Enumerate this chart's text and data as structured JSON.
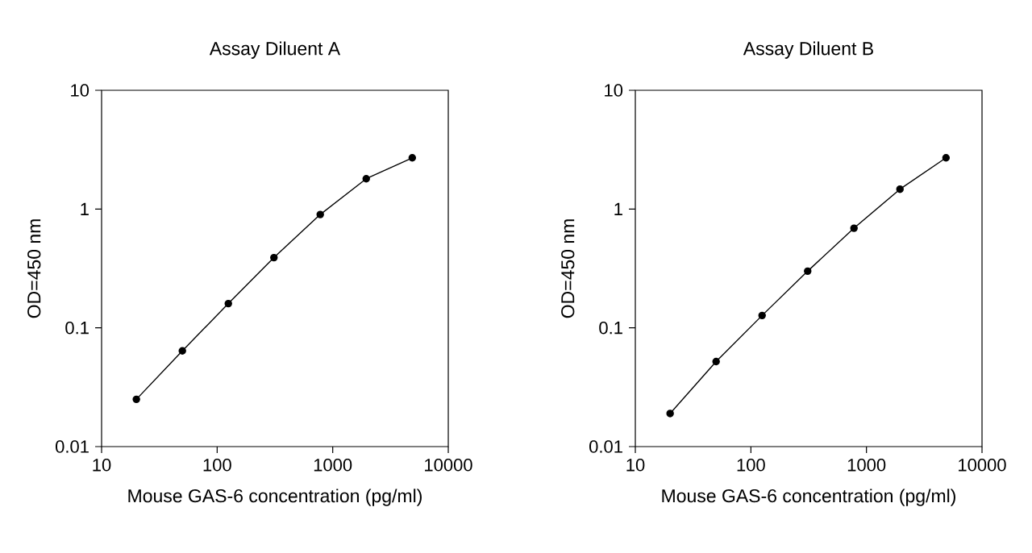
{
  "chart_data": [
    {
      "type": "line",
      "title": "Assay Diluent A",
      "xlabel": "Mouse GAS-6 concentration (pg/ml)",
      "ylabel": "OD=450 nm",
      "log": "xy",
      "xlim": [
        10,
        10000
      ],
      "ylim": [
        0.01,
        10
      ],
      "xticks": [
        10,
        100,
        1000,
        10000
      ],
      "yticks": [
        0.01,
        0.1,
        1,
        10
      ],
      "marker": "circle",
      "grid": false,
      "color": "#000000",
      "x": [
        20,
        50,
        125,
        310,
        780,
        1950,
        4880
      ],
      "values": [
        0.025,
        0.064,
        0.16,
        0.39,
        0.9,
        1.8,
        2.7
      ]
    },
    {
      "type": "line",
      "title": "Assay Diluent B",
      "xlabel": "Mouse GAS-6 concentration (pg/ml)",
      "ylabel": "OD=450 nm",
      "log": "xy",
      "xlim": [
        10,
        10000
      ],
      "ylim": [
        0.01,
        10
      ],
      "xticks": [
        10,
        100,
        1000,
        10000
      ],
      "yticks": [
        0.01,
        0.1,
        1,
        10
      ],
      "marker": "circle",
      "grid": false,
      "color": "#000000",
      "x": [
        20,
        50,
        125,
        310,
        780,
        1950,
        4880
      ],
      "values": [
        0.019,
        0.052,
        0.127,
        0.3,
        0.69,
        1.47,
        2.7
      ]
    }
  ]
}
